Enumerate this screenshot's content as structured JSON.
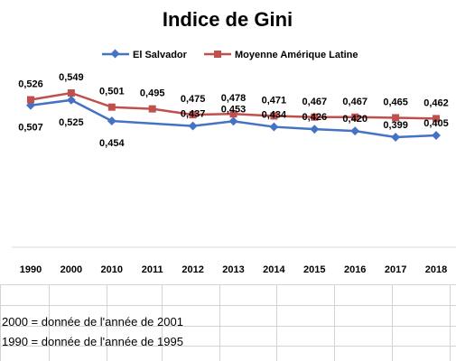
{
  "chart_data": {
    "type": "line",
    "title": "Indice de Gini",
    "x": [
      "1990",
      "2000",
      "2010",
      "2011",
      "2012",
      "2013",
      "2014",
      "2015",
      "2016",
      "2017",
      "2018"
    ],
    "series": [
      {
        "name": "El Salvador",
        "color": "#4472C4",
        "marker": "diamond",
        "values": [
          0.507,
          0.525,
          0.454,
          null,
          0.437,
          0.453,
          0.434,
          0.426,
          0.42,
          0.399,
          0.405
        ],
        "labels": [
          "0,507",
          "0,525",
          "0,454",
          "",
          "0,437",
          "0,453",
          "0,434",
          "0,426",
          "0,420",
          "0,399",
          "0,405"
        ]
      },
      {
        "name": "Moyenne Amérique Latine",
        "color": "#C0504D",
        "marker": "square",
        "values": [
          0.526,
          0.549,
          0.501,
          0.495,
          0.475,
          0.478,
          0.471,
          0.467,
          0.467,
          0.465,
          0.462
        ],
        "labels": [
          "0,526",
          "0,549",
          "0,501",
          "0,495",
          "0,475",
          "0,478",
          "0,471",
          "0,467",
          "0,467",
          "0,465",
          "0,462"
        ]
      }
    ],
    "legend": "top",
    "grid": false,
    "ylim": [
      0,
      0.6
    ]
  },
  "notes": [
    "2000 = donnée de l'année de 2001",
    "1990 = donnée de l'année de 1995"
  ]
}
